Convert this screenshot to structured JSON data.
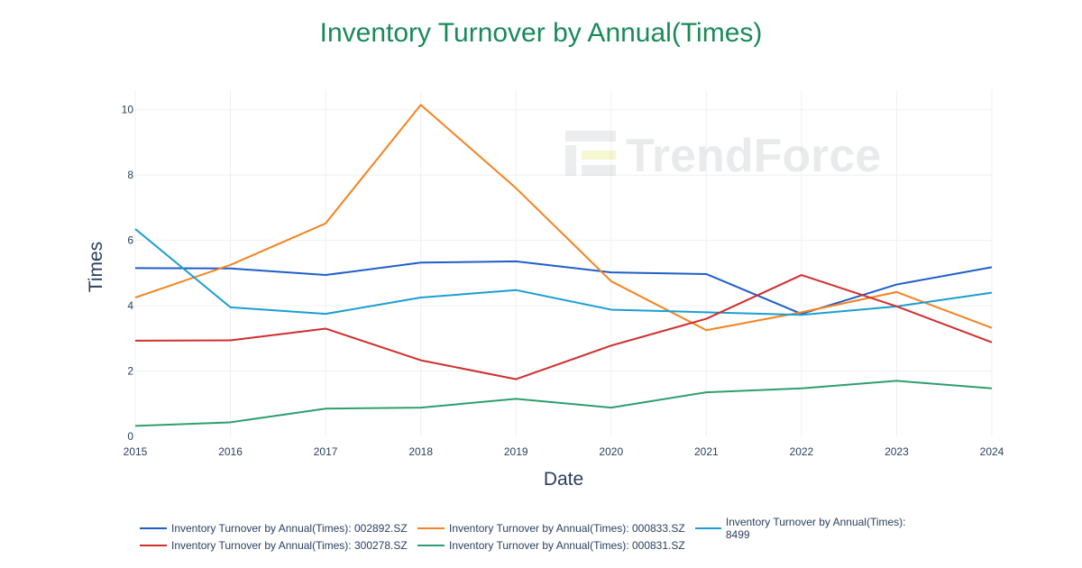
{
  "chart_data": {
    "type": "line",
    "title": "Inventory Turnover by Annual(Times)",
    "xlabel": "Date",
    "ylabel": "Times",
    "x": [
      2015,
      2016,
      2017,
      2018,
      2019,
      2020,
      2021,
      2022,
      2023,
      2024
    ],
    "xlim": [
      2015,
      2024
    ],
    "ylim": [
      0,
      10.6
    ],
    "yticks": [
      0,
      2,
      4,
      6,
      8,
      10
    ],
    "grid": true,
    "legend_position": "bottom",
    "watermark": "TrendForce",
    "series": [
      {
        "name": "Inventory Turnover by Annual(Times): 002892.SZ",
        "color": "#1f5ec9",
        "values": [
          5.15,
          5.14,
          4.94,
          5.32,
          5.36,
          5.02,
          4.97,
          3.75,
          4.65,
          5.18
        ]
      },
      {
        "name": "Inventory Turnover by Annual(Times): 000833.SZ",
        "color": "#f5831f",
        "values": [
          4.25,
          5.25,
          6.52,
          10.15,
          7.6,
          4.75,
          3.25,
          3.8,
          4.42,
          3.32
        ]
      },
      {
        "name": "Inventory Turnover by Annual(Times): 8499",
        "color": "#1b9ed1",
        "values": [
          6.35,
          3.95,
          3.75,
          4.25,
          4.48,
          3.88,
          3.8,
          3.72,
          3.98,
          4.4
        ]
      },
      {
        "name": "Inventory Turnover by Annual(Times): 300278.SZ",
        "color": "#d12e2e",
        "values": [
          2.93,
          2.94,
          3.3,
          2.33,
          1.75,
          2.78,
          3.6,
          4.94,
          3.98,
          2.88
        ]
      },
      {
        "name": "Inventory Turnover by Annual(Times): 000831.SZ",
        "color": "#2e9e6e",
        "values": [
          0.32,
          0.43,
          0.85,
          0.88,
          1.15,
          0.88,
          1.35,
          1.47,
          1.7,
          1.47
        ]
      }
    ]
  }
}
